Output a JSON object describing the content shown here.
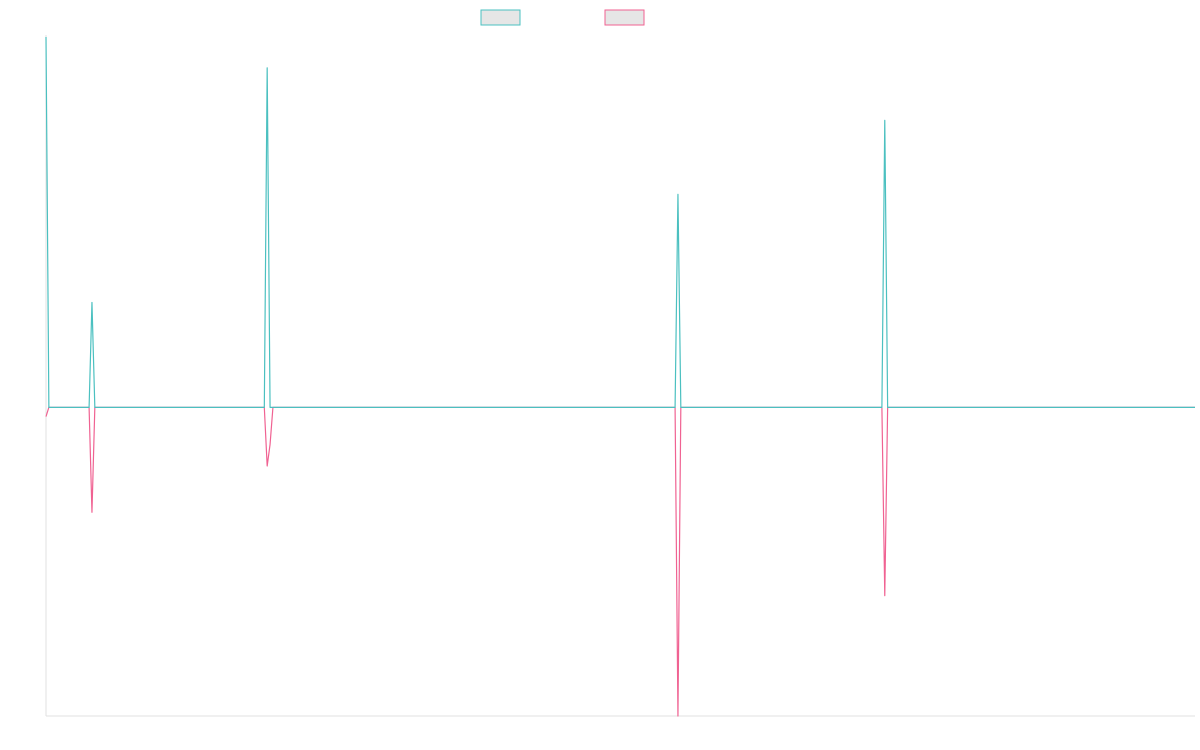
{
  "chart_data": {
    "type": "line",
    "title": "",
    "xlabel": "",
    "ylabel": "",
    "legend_position": "top",
    "grid": false,
    "x_range": [
      0,
      100
    ],
    "ylim": [
      -1.0,
      1.2
    ],
    "series": [
      {
        "color": "#4bc0c0",
        "legend_fill": "#e6e6e6",
        "points": [
          [
            0,
            1.2
          ],
          [
            0.25,
            0
          ],
          [
            3.75,
            0
          ],
          [
            4.0,
            0.34
          ],
          [
            4.25,
            0
          ],
          [
            19.0,
            0
          ],
          [
            19.25,
            1.1
          ],
          [
            19.5,
            0
          ],
          [
            54.75,
            0
          ],
          [
            55.0,
            0.69
          ],
          [
            55.25,
            0
          ],
          [
            72.75,
            0
          ],
          [
            73.0,
            0.93
          ],
          [
            73.25,
            0
          ],
          [
            100,
            0
          ]
        ]
      },
      {
        "color": "#f06292",
        "legend_fill": "#e6e6e6",
        "points": [
          [
            0,
            -0.03
          ],
          [
            0.25,
            0
          ],
          [
            3.75,
            0
          ],
          [
            4.0,
            -0.34
          ],
          [
            4.25,
            0
          ],
          [
            19.0,
            0
          ],
          [
            19.25,
            -0.19
          ],
          [
            19.5,
            -0.12
          ],
          [
            19.75,
            0
          ],
          [
            54.75,
            0
          ],
          [
            55.0,
            -1.0
          ],
          [
            55.25,
            0
          ],
          [
            72.75,
            0
          ],
          [
            73.0,
            -0.61
          ],
          [
            73.25,
            0
          ],
          [
            100,
            0
          ]
        ]
      }
    ]
  }
}
